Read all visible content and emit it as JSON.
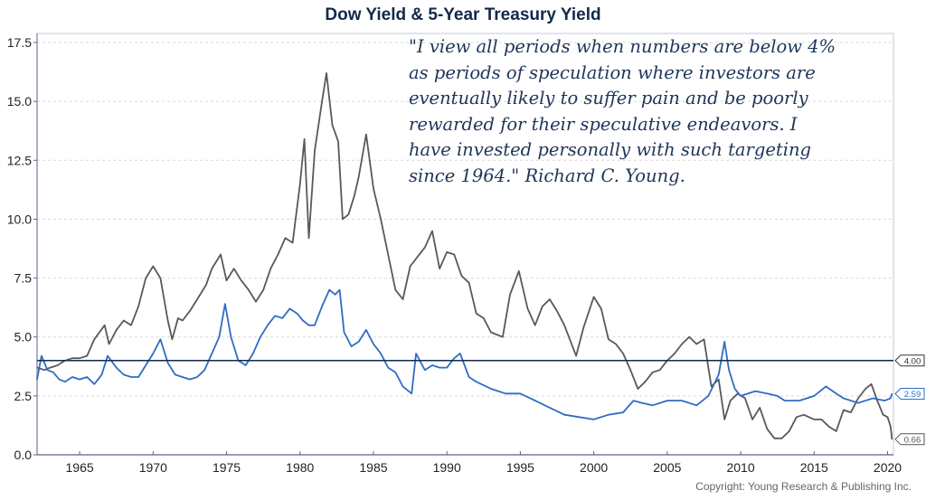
{
  "chart_data": {
    "type": "line",
    "title": "Dow Yield & 5-Year Treasury Yield",
    "xlabel": "",
    "ylabel": "",
    "xlim": [
      1962.1,
      2020.4
    ],
    "ylim": [
      0,
      17.5
    ],
    "x_ticks": [
      "1965",
      "1970",
      "1975",
      "1980",
      "1985",
      "1990",
      "1995",
      "2000",
      "2005",
      "2010",
      "2015",
      "2020"
    ],
    "y_ticks": [
      "0.0",
      "2.5",
      "5.0",
      "7.5",
      "10.0",
      "12.5",
      "15.0",
      "17.5"
    ],
    "grid": true,
    "reference_line": {
      "value": 4.0,
      "label": "4.00",
      "color": "#13294b"
    },
    "series": [
      {
        "name": "5-Year Treasury Yield",
        "color": "#595959",
        "end_label": "0.66",
        "x": [
          1962.1,
          1962.6,
          1963.0,
          1963.5,
          1964.0,
          1964.5,
          1965.0,
          1965.5,
          1966.0,
          1966.7,
          1967.0,
          1967.5,
          1968.0,
          1968.5,
          1969.0,
          1969.5,
          1970.0,
          1970.5,
          1971.0,
          1971.3,
          1971.7,
          1972.0,
          1972.5,
          1973.0,
          1973.6,
          1974.0,
          1974.6,
          1975.0,
          1975.5,
          1976.0,
          1976.5,
          1977.0,
          1977.5,
          1978.0,
          1978.5,
          1979.0,
          1979.5,
          1980.0,
          1980.3,
          1980.6,
          1981.0,
          1981.5,
          1981.8,
          1982.2,
          1982.6,
          1982.9,
          1983.3,
          1983.7,
          1984.0,
          1984.5,
          1985.0,
          1985.5,
          1986.0,
          1986.5,
          1987.0,
          1987.5,
          1988.0,
          1988.5,
          1989.0,
          1989.5,
          1990.0,
          1990.5,
          1991.0,
          1991.5,
          1992.0,
          1992.5,
          1993.0,
          1993.8,
          1994.3,
          1994.9,
          1995.5,
          1996.0,
          1996.5,
          1997.0,
          1997.5,
          1998.0,
          1998.8,
          1999.3,
          2000.0,
          2000.5,
          2001.0,
          2001.5,
          2002.0,
          2002.5,
          2003.0,
          2003.5,
          2004.0,
          2004.5,
          2005.0,
          2005.5,
          2006.0,
          2006.5,
          2007.0,
          2007.5,
          2008.0,
          2008.5,
          2008.9,
          2009.3,
          2009.8,
          2010.3,
          2010.8,
          2011.3,
          2011.8,
          2012.3,
          2012.8,
          2013.3,
          2013.8,
          2014.3,
          2015.0,
          2015.5,
          2016.0,
          2016.5,
          2017.0,
          2017.5,
          2018.0,
          2018.5,
          2018.9,
          2019.3,
          2019.7,
          2020.0,
          2020.2,
          2020.3
        ],
        "values": [
          3.7,
          3.6,
          3.7,
          3.8,
          4.0,
          4.1,
          4.1,
          4.2,
          4.9,
          5.5,
          4.7,
          5.3,
          5.7,
          5.5,
          6.3,
          7.5,
          8.0,
          7.5,
          5.7,
          4.9,
          5.8,
          5.7,
          6.1,
          6.6,
          7.2,
          7.9,
          8.5,
          7.4,
          7.9,
          7.4,
          7.0,
          6.5,
          7.0,
          7.9,
          8.5,
          9.2,
          9.0,
          11.5,
          13.4,
          9.2,
          12.9,
          15.0,
          16.2,
          14.0,
          13.3,
          10.0,
          10.2,
          11.0,
          11.8,
          13.6,
          11.3,
          10.0,
          8.5,
          7.0,
          6.6,
          8.0,
          8.4,
          8.8,
          9.5,
          7.9,
          8.6,
          8.5,
          7.6,
          7.3,
          6.0,
          5.8,
          5.2,
          5.0,
          6.8,
          7.8,
          6.2,
          5.5,
          6.3,
          6.6,
          6.1,
          5.5,
          4.2,
          5.4,
          6.7,
          6.2,
          4.9,
          4.7,
          4.3,
          3.6,
          2.8,
          3.1,
          3.5,
          3.6,
          4.0,
          4.3,
          4.7,
          5.0,
          4.7,
          4.9,
          2.9,
          3.2,
          1.5,
          2.3,
          2.6,
          2.4,
          1.5,
          2.0,
          1.1,
          0.7,
          0.7,
          1.0,
          1.6,
          1.7,
          1.5,
          1.5,
          1.2,
          1.0,
          1.9,
          1.8,
          2.4,
          2.8,
          3.0,
          2.3,
          1.7,
          1.6,
          1.2,
          0.66
        ]
      },
      {
        "name": "Dow Yield",
        "color": "#2f6cc4",
        "end_label": "2.59",
        "x": [
          1962.1,
          1962.4,
          1962.8,
          1963.2,
          1963.6,
          1964.0,
          1964.5,
          1965.0,
          1965.5,
          1966.0,
          1966.5,
          1966.9,
          1967.5,
          1968.0,
          1968.5,
          1969.0,
          1969.5,
          1970.0,
          1970.5,
          1971.0,
          1971.5,
          1972.0,
          1972.5,
          1973.0,
          1973.5,
          1974.0,
          1974.5,
          1974.9,
          1975.3,
          1975.8,
          1976.3,
          1976.8,
          1977.3,
          1977.8,
          1978.3,
          1978.8,
          1979.3,
          1979.8,
          1980.2,
          1980.6,
          1981.0,
          1981.5,
          1982.0,
          1982.4,
          1982.7,
          1983.0,
          1983.5,
          1984.0,
          1984.5,
          1985.0,
          1985.5,
          1986.0,
          1986.5,
          1987.0,
          1987.6,
          1987.9,
          1988.5,
          1989.0,
          1989.5,
          1990.0,
          1990.5,
          1990.9,
          1991.5,
          1992.0,
          1993.0,
          1994.0,
          1995.0,
          1996.0,
          1997.0,
          1998.0,
          1999.0,
          2000.0,
          2001.0,
          2002.0,
          2002.7,
          2003.3,
          2004.0,
          2005.0,
          2006.0,
          2007.0,
          2007.8,
          2008.5,
          2008.9,
          2009.2,
          2009.6,
          2010.0,
          2011.0,
          2011.8,
          2012.5,
          2013.0,
          2014.0,
          2015.0,
          2015.8,
          2016.5,
          2017.0,
          2018.0,
          2019.0,
          2019.8,
          2020.2,
          2020.3
        ],
        "values": [
          3.2,
          4.2,
          3.6,
          3.5,
          3.2,
          3.1,
          3.3,
          3.2,
          3.3,
          3.0,
          3.4,
          4.2,
          3.7,
          3.4,
          3.3,
          3.3,
          3.8,
          4.3,
          4.9,
          3.9,
          3.4,
          3.3,
          3.2,
          3.3,
          3.6,
          4.3,
          5.0,
          6.4,
          5.0,
          4.0,
          3.8,
          4.3,
          5.0,
          5.5,
          5.9,
          5.8,
          6.2,
          6.0,
          5.7,
          5.5,
          5.5,
          6.3,
          7.0,
          6.8,
          7.0,
          5.2,
          4.6,
          4.8,
          5.3,
          4.7,
          4.3,
          3.7,
          3.5,
          2.9,
          2.6,
          4.3,
          3.6,
          3.8,
          3.7,
          3.7,
          4.1,
          4.3,
          3.3,
          3.1,
          2.8,
          2.6,
          2.6,
          2.3,
          2.0,
          1.7,
          1.6,
          1.5,
          1.7,
          1.8,
          2.3,
          2.2,
          2.1,
          2.3,
          2.3,
          2.1,
          2.5,
          3.4,
          4.8,
          3.6,
          2.8,
          2.5,
          2.7,
          2.6,
          2.5,
          2.3,
          2.3,
          2.5,
          2.9,
          2.6,
          2.4,
          2.2,
          2.4,
          2.3,
          2.4,
          2.59
        ]
      }
    ]
  },
  "quote": {
    "lines": [
      "\"I view all periods when numbers are below 4%",
      "as periods of speculation where investors are",
      "eventually likely to suffer pain and be poorly",
      "rewarded for their speculative endeavors. I",
      "have invested personally with such targeting",
      "since 1964.\"    Richard C. Young."
    ]
  },
  "copyright": "Copyright: Young Research & Publishing Inc."
}
